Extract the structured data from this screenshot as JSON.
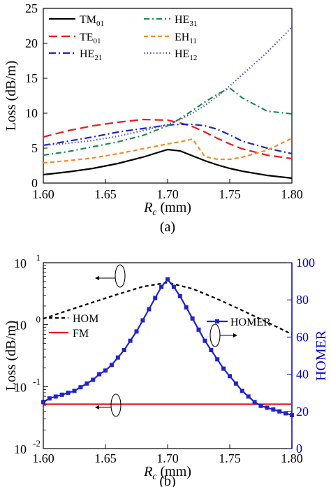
{
  "chart_data": [
    {
      "type": "line",
      "panel": "(a)",
      "xlabel_main": "R",
      "xlabel_sub": "c",
      "xlabel_unit": " (mm)",
      "ylabel": "Loss (dB/m)",
      "xlim": [
        1.6,
        1.8
      ],
      "ylim": [
        0,
        25
      ],
      "xticks": [
        "1.60",
        "1.65",
        "1.70",
        "1.75",
        "1.80"
      ],
      "yticks": [
        "0",
        "5",
        "10",
        "15",
        "20",
        "25"
      ],
      "legend": [
        {
          "key": "TM01",
          "main": "TM",
          "sub": "01"
        },
        {
          "key": "HE31",
          "main": "HE",
          "sub": "31"
        },
        {
          "key": "TE01",
          "main": "TE",
          "sub": "01"
        },
        {
          "key": "EH11",
          "main": "EH",
          "sub": "11"
        },
        {
          "key": "HE21",
          "main": "HE",
          "sub": "21"
        },
        {
          "key": "HE12",
          "main": "HE",
          "sub": "12"
        }
      ],
      "x": [
        1.6,
        1.62,
        1.64,
        1.66,
        1.68,
        1.7,
        1.71,
        1.72,
        1.73,
        1.74,
        1.75,
        1.76,
        1.78,
        1.8
      ],
      "series": [
        {
          "key": "TM01",
          "color": "#000000",
          "values": [
            1.2,
            1.6,
            2.1,
            2.8,
            3.7,
            4.8,
            4.6,
            3.9,
            3.2,
            2.6,
            2.1,
            1.7,
            1.1,
            0.7
          ]
        },
        {
          "key": "TE01",
          "color": "#e8191c",
          "values": [
            6.6,
            7.5,
            8.2,
            8.7,
            9.1,
            9.0,
            8.6,
            8.1,
            7.3,
            6.4,
            5.6,
            4.9,
            4.0,
            3.5
          ]
        },
        {
          "key": "HE21",
          "color": "#1f24c8",
          "values": [
            5.4,
            6.0,
            6.6,
            7.3,
            7.8,
            8.3,
            8.4,
            8.4,
            8.2,
            7.7,
            6.9,
            6.0,
            5.0,
            4.2
          ]
        },
        {
          "key": "HE31",
          "color": "#1f8a55",
          "values": [
            4.0,
            4.5,
            5.2,
            5.9,
            6.8,
            8.2,
            9.2,
            10.4,
            11.6,
            12.7,
            13.6,
            12.2,
            10.3,
            9.9
          ]
        },
        {
          "key": "EH11",
          "color": "#f0901e",
          "values": [
            2.9,
            3.2,
            3.6,
            4.2,
            4.9,
            5.6,
            5.9,
            6.3,
            3.8,
            3.4,
            3.4,
            3.7,
            4.7,
            6.4
          ]
        },
        {
          "key": "HE12",
          "color": "#5a4fb8",
          "values": [
            5.4,
            5.7,
            6.1,
            6.7,
            7.5,
            8.4,
            9.1,
            10.0,
            11.1,
            12.4,
            13.9,
            15.5,
            18.7,
            22.3
          ]
        }
      ]
    },
    {
      "type": "line",
      "panel": "(b)",
      "xlabel_main": "R",
      "xlabel_sub": "c",
      "xlabel_unit": " (mm)",
      "ylabel": "Loss (dB/m)",
      "ylabel_right": "HOMER",
      "xlim": [
        1.6,
        1.8
      ],
      "ylim_log": [
        0.01,
        10
      ],
      "ylim_right": [
        0,
        100
      ],
      "xticks": [
        "1.60",
        "1.65",
        "1.70",
        "1.75",
        "1.80"
      ],
      "yticks_log": [
        {
          "base": "10",
          "exp": "-2",
          "value": 0.01
        },
        {
          "base": "10",
          "exp": "-1",
          "value": 0.1
        },
        {
          "base": "10",
          "exp": "0",
          "value": 1
        },
        {
          "base": "10",
          "exp": "1",
          "value": 10
        }
      ],
      "yticks_right": [
        "0",
        "20",
        "40",
        "60",
        "80",
        "100"
      ],
      "legend": [
        {
          "key": "HOM",
          "label": "HOM"
        },
        {
          "key": "FM",
          "label": "FM"
        },
        {
          "key": "HOMER",
          "label": "HOMER"
        }
      ],
      "x": [
        1.6,
        1.62,
        1.64,
        1.66,
        1.68,
        1.7,
        1.72,
        1.74,
        1.76,
        1.78,
        1.8
      ],
      "series": [
        {
          "key": "HOM",
          "color": "#000000",
          "axis": "left",
          "values": [
            1.25,
            1.7,
            2.3,
            3.1,
            4.1,
            4.8,
            3.8,
            2.6,
            1.7,
            1.1,
            0.7
          ]
        },
        {
          "key": "FM",
          "color": "#e8191c",
          "axis": "left",
          "values": [
            0.052,
            0.052,
            0.052,
            0.052,
            0.052,
            0.052,
            0.052,
            0.052,
            0.052,
            0.052,
            0.052
          ]
        },
        {
          "key": "HOMER",
          "color": "#1f24c8",
          "axis": "right",
          "marker": "square",
          "x": [
            1.6,
            1.605,
            1.61,
            1.615,
            1.62,
            1.625,
            1.63,
            1.635,
            1.64,
            1.645,
            1.65,
            1.655,
            1.66,
            1.665,
            1.67,
            1.675,
            1.68,
            1.685,
            1.69,
            1.695,
            1.7,
            1.705,
            1.71,
            1.715,
            1.72,
            1.725,
            1.73,
            1.735,
            1.74,
            1.745,
            1.75,
            1.755,
            1.76,
            1.765,
            1.77,
            1.775,
            1.78,
            1.785,
            1.79,
            1.795,
            1.8
          ],
          "values": [
            25,
            27,
            28,
            29,
            30,
            31,
            33,
            35,
            37,
            40,
            42,
            45,
            49,
            53,
            58,
            63,
            69,
            75,
            81,
            87,
            91,
            87,
            82,
            76,
            70,
            64,
            58,
            53,
            48,
            43,
            39,
            35,
            31,
            28,
            25,
            23,
            22,
            21,
            20,
            19,
            18
          ]
        }
      ]
    }
  ]
}
